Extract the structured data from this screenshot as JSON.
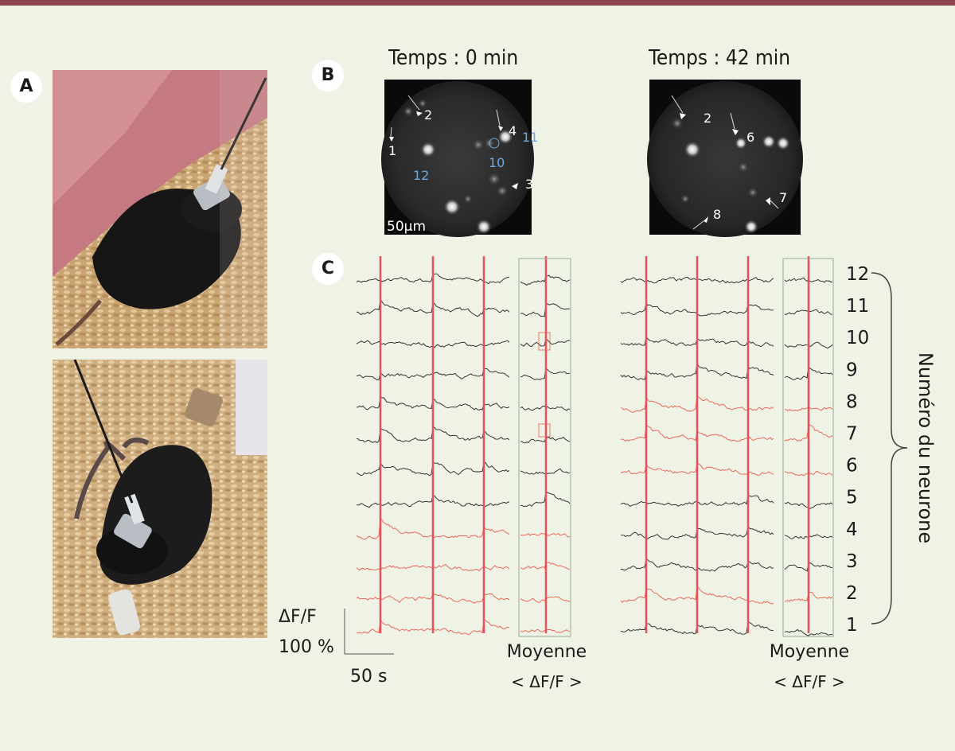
{
  "panels": {
    "a": "A",
    "b": "B",
    "c": "C"
  },
  "timepoints": {
    "left": "Temps : 0 min",
    "right": "Temps : 42 min"
  },
  "scale_bar": {
    "micro": "50µm",
    "dff": "ΔF/F",
    "dff_amplitude": "100 %",
    "time": "50 s"
  },
  "mean_label": {
    "line1": "Moyenne",
    "line2": "< ΔF/F >"
  },
  "axis_title": "Numéro du neurone",
  "neuron_numbers": [
    "12",
    "11",
    "10",
    "9",
    "8",
    "7",
    "6",
    "5",
    "4",
    "3",
    "2",
    "1"
  ],
  "cell_labels_0min": [
    "1",
    "2",
    "3",
    "4",
    "10",
    "11",
    "12"
  ],
  "cell_labels_42min": [
    "2",
    "6",
    "7",
    "8"
  ],
  "trace_colors": {
    "left": [
      "black",
      "black",
      "black",
      "black",
      "black",
      "black",
      "black",
      "black",
      "red",
      "red",
      "red",
      "red"
    ],
    "right": [
      "black",
      "black",
      "black",
      "black",
      "red",
      "red",
      "red",
      "black",
      "black",
      "black",
      "red",
      "black"
    ]
  },
  "colors": {
    "accent_bar": "#8e4451",
    "event_line": "#e8505b",
    "red_trace": "#ee5a4a",
    "blue_label": "#6fa8dc",
    "box": "#9aa896"
  }
}
